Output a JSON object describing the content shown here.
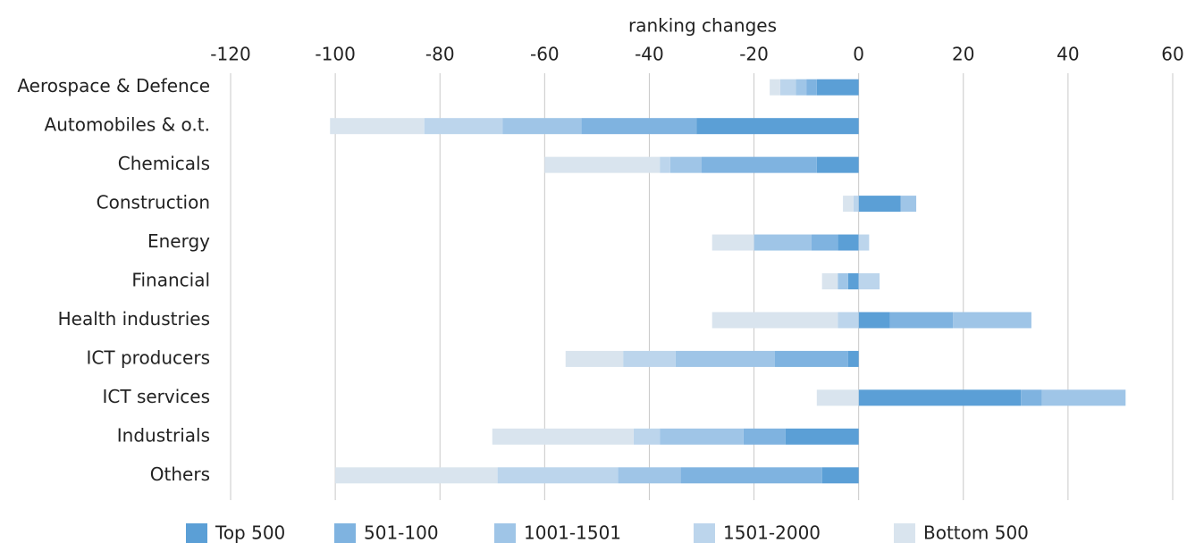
{
  "chart_data": {
    "type": "bar",
    "orientation": "horizontal",
    "stacked": true,
    "x_label": "ranking changes",
    "categories": [
      "Aerospace & Defence",
      "Automobiles & o.t.",
      "Chemicals",
      "Construction",
      "Energy",
      "Financial",
      "Health industries",
      "ICT producers",
      "ICT services",
      "Industrials",
      "Others"
    ],
    "series": [
      {
        "name": "Top 500",
        "color": "#5b9fd6",
        "values": [
          -8,
          -31,
          -8,
          8,
          -4,
          -2,
          6,
          -2,
          31,
          -14,
          -7
        ]
      },
      {
        "name": "501-100",
        "color": "#7fb3e0",
        "values": [
          -2,
          -22,
          -22,
          0,
          -5,
          0,
          12,
          -14,
          4,
          -8,
          -27
        ]
      },
      {
        "name": "1001-1501",
        "color": "#9fc5e7",
        "values": [
          -2,
          -15,
          -6,
          3,
          -11,
          -2,
          15,
          -19,
          16,
          -16,
          -12
        ]
      },
      {
        "name": "1501-2000",
        "color": "#bcd5ec",
        "values": [
          -3,
          -15,
          -2,
          -1,
          2,
          4,
          -4,
          -10,
          0,
          -5,
          -23
        ]
      },
      {
        "name": "Bottom 500",
        "color": "#d9e4ee",
        "values": [
          -2,
          -18,
          -22,
          -2,
          -8,
          -3,
          -24,
          -11,
          -8,
          -27,
          -31
        ]
      }
    ],
    "xlim": [
      -120,
      60
    ],
    "xticks": [
      -120,
      -100,
      -80,
      -60,
      -40,
      -20,
      0,
      20,
      40,
      60
    ],
    "grid": true,
    "legend": "bottom"
  }
}
